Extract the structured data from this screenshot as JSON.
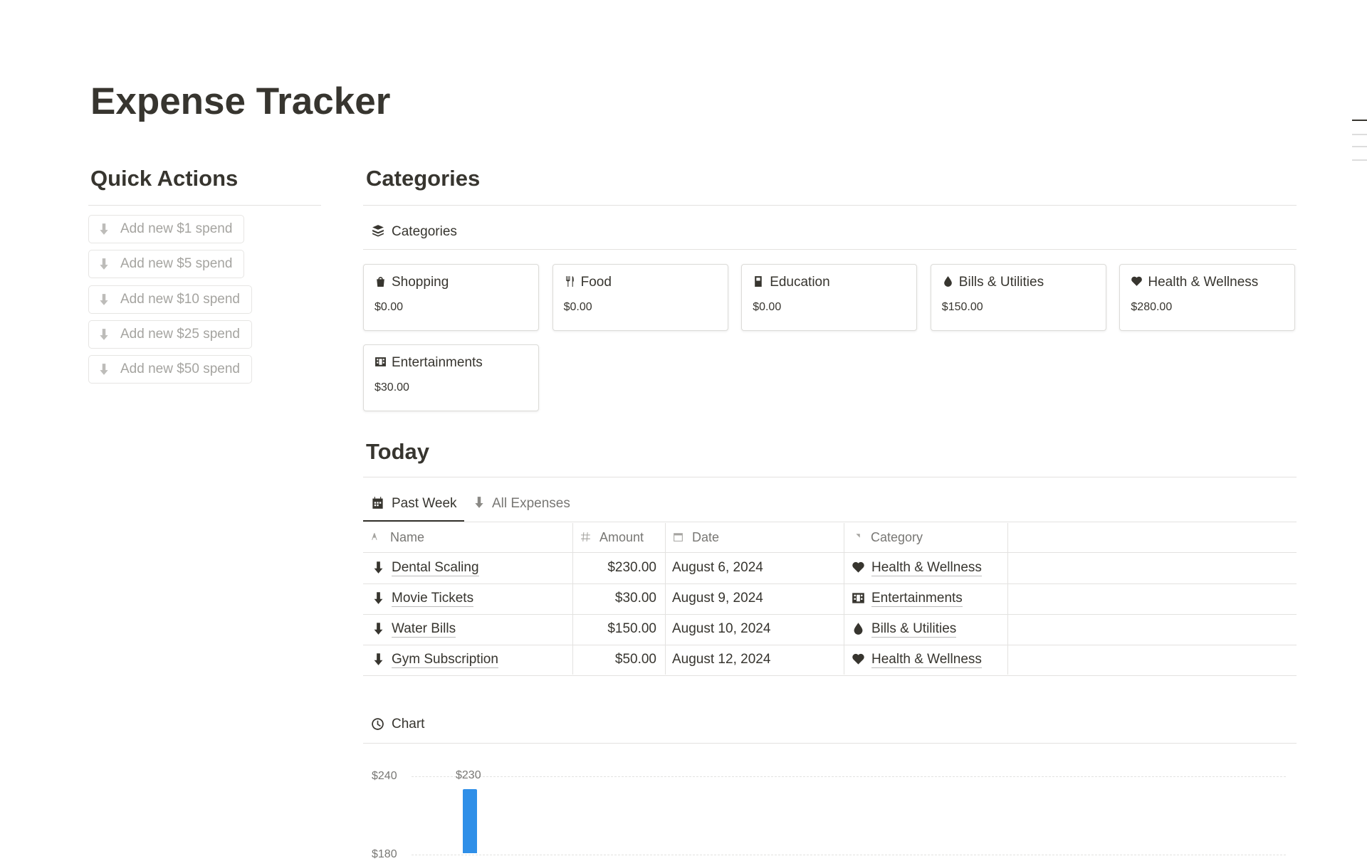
{
  "header": {
    "title": "Expense Tracker"
  },
  "quick_actions": {
    "title": "Quick Actions",
    "buttons": [
      "Add new $1 spend",
      "Add new $5 spend",
      "Add new $10 spend",
      "Add new $25 spend",
      "Add new $50 spend"
    ]
  },
  "categories": {
    "title": "Categories",
    "view": "Categories",
    "cards": [
      {
        "name": "Shopping",
        "amount": "$0.00"
      },
      {
        "name": "Food",
        "amount": "$0.00"
      },
      {
        "name": "Education",
        "amount": "$0.00"
      },
      {
        "name": "Bills & Utilities",
        "amount": "$150.00"
      },
      {
        "name": "Health & Wellness",
        "amount": "$280.00"
      },
      {
        "name": "Entertainments",
        "amount": "$30.00"
      }
    ]
  },
  "today": {
    "title": "Today",
    "tabs": [
      "Past Week",
      "All Expenses"
    ],
    "table": {
      "columns": [
        "Name",
        "Amount",
        "Date",
        "Category"
      ],
      "rows": [
        [
          "Dental Scaling",
          "$230.00",
          "August 6, 2024",
          "Health & Wellness"
        ],
        [
          "Movie Tickets",
          "$30.00",
          "August 9, 2024",
          "Entertainments"
        ],
        [
          "Water Bills",
          "$150.00",
          "August 10, 2024",
          "Bills & Utilities"
        ],
        [
          "Gym Subscription",
          "$50.00",
          "August 12, 2024",
          "Health & Wellness"
        ]
      ]
    }
  },
  "chart": {
    "view": "Chart",
    "chart_data": {
      "type": "bar",
      "values": [
        230
      ],
      "value_labels": [
        "$230"
      ],
      "color": "#2f8fe8",
      "yticks": [
        {
          "value": 240,
          "label": "$240"
        },
        {
          "value": 180,
          "label": "$180"
        }
      ],
      "grid": true
    }
  }
}
